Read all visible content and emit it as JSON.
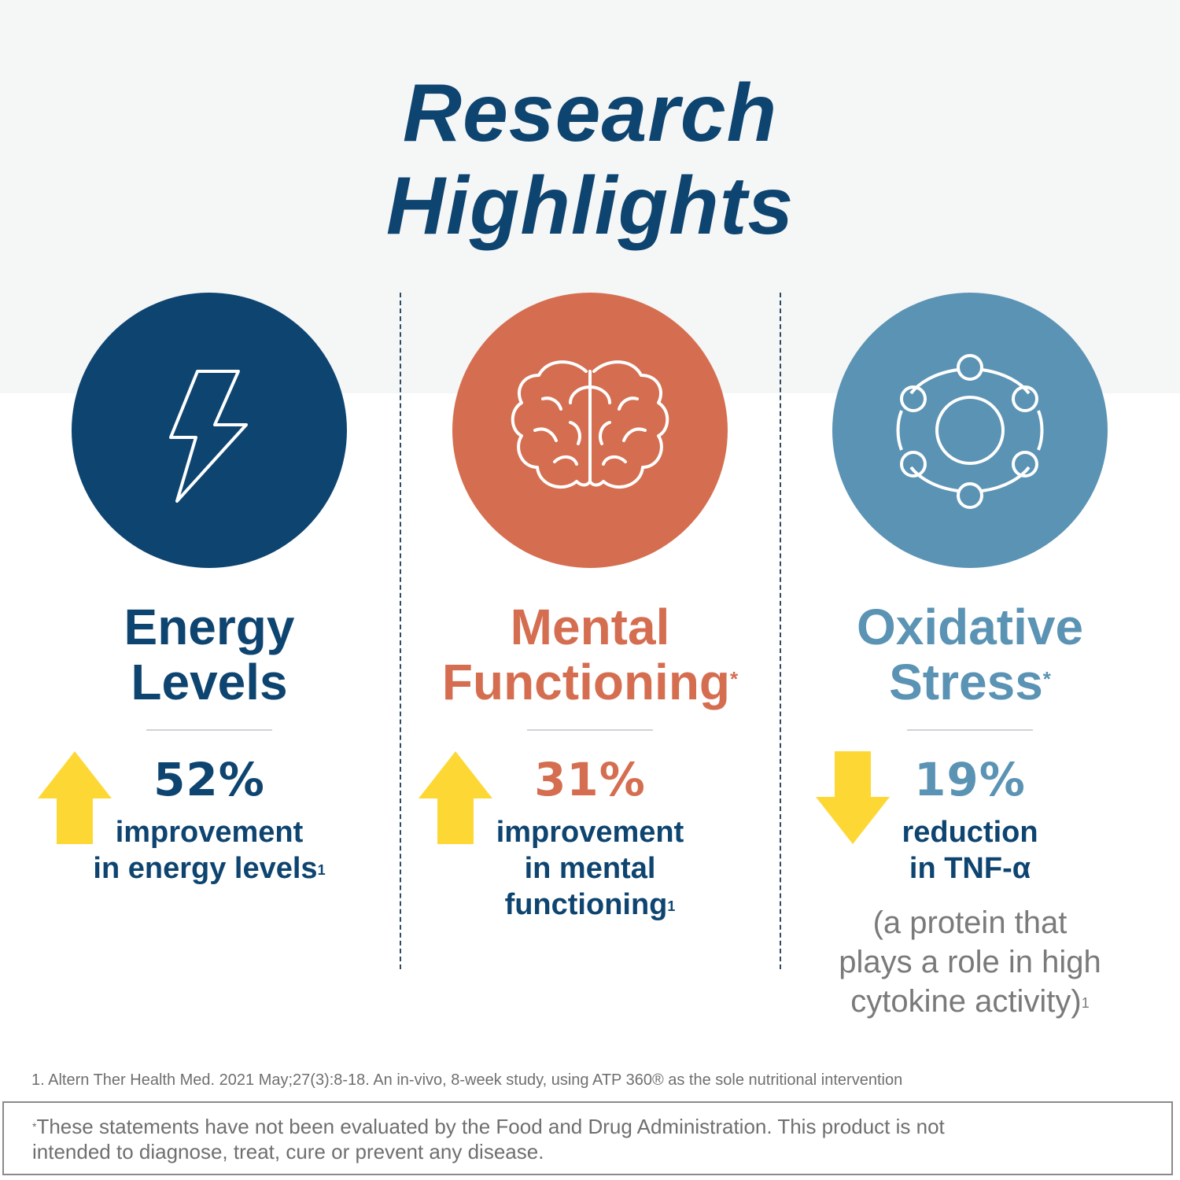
{
  "title": {
    "line1": "Research",
    "line2": "Highlights"
  },
  "colors": {
    "navy": "#0e4470",
    "coral": "#d56e50",
    "steel_blue": "#5b93b4",
    "yellow": "#fdd835",
    "top_band": "#f5f6f6"
  },
  "columns": [
    {
      "icon": "lightning-bolt-icon",
      "heading_line1": "Energy",
      "heading_line2": "Levels",
      "heading_mark": "",
      "direction": "up",
      "percent": "52%",
      "desc_line1": "improvement",
      "desc_line2": "in energy levels",
      "desc_line3": "",
      "desc_ref": "1"
    },
    {
      "icon": "brain-icon",
      "heading_line1": "Mental",
      "heading_line2": "Functioning",
      "heading_mark": "*",
      "direction": "up",
      "percent": "31%",
      "desc_line1": "improvement",
      "desc_line2": "in mental",
      "desc_line3": "functioning",
      "desc_ref": "1"
    },
    {
      "icon": "molecule-icon",
      "heading_line1": "Oxidative",
      "heading_line2": "Stress",
      "heading_mark": "*",
      "direction": "down",
      "percent": "19%",
      "desc_line1": "reduction",
      "desc_line2": "in TNF-α",
      "desc_line3": "",
      "desc_ref": "",
      "note_line1": "(a protein that",
      "note_line2": "plays a role in high",
      "note_line3": "cytokine activity)",
      "note_ref": "1"
    }
  ],
  "footnote": "1. Altern Ther Health Med. 2021 May;27(3):8-18. An in-vivo, 8-week study, using ATP 360® as the sole nutritional intervention",
  "disclaimer": {
    "mark": "*",
    "line1": "These statements have not been evaluated by the Food and Drug Administration. This product is not",
    "line2": "intended to diagnose, treat, cure or prevent any disease."
  }
}
